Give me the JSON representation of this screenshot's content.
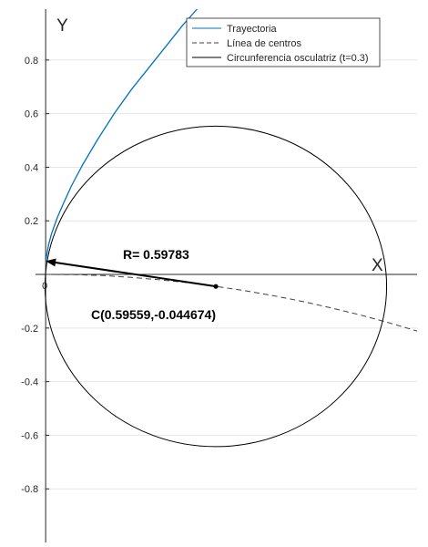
{
  "chart_data": {
    "type": "line",
    "title": "",
    "xlabel": "X",
    "ylabel": "Y",
    "origin_label": "0",
    "xlim": [
      -0.01,
      1.3
    ],
    "ylim": [
      -1.0,
      0.99
    ],
    "yticks": [
      -0.8,
      -0.6,
      -0.4,
      -0.2,
      0.2,
      0.4,
      0.6,
      0.8
    ],
    "ytick_labels": [
      "-0.8",
      "-0.6",
      "-0.4",
      "-0.2",
      "0.2",
      "0.4",
      "0.6",
      "0.8"
    ],
    "grid": true,
    "legend_position": "top-right",
    "parameter_t": 0.3,
    "series": [
      {
        "name": "Trayectoria",
        "style": "solid",
        "color": "#0072BD",
        "x": [
          0.0,
          0.01,
          0.02,
          0.04,
          0.06,
          0.09,
          0.13,
          0.18,
          0.24,
          0.3,
          0.36,
          0.42,
          0.48,
          0.53
        ],
        "y": [
          0.05,
          0.11,
          0.15,
          0.21,
          0.26,
          0.33,
          0.41,
          0.5,
          0.6,
          0.69,
          0.77,
          0.85,
          0.93,
          0.99
        ]
      },
      {
        "name": "Línea de centros",
        "style": "dashed",
        "color": "#404040",
        "x": [
          0.0,
          0.1,
          0.2,
          0.3,
          0.4,
          0.5,
          0.6,
          0.7,
          0.8,
          0.9,
          1.0,
          1.1,
          1.2,
          1.3
        ],
        "y": [
          0.0,
          -0.001,
          -0.004,
          -0.011,
          -0.02,
          -0.031,
          -0.045,
          -0.061,
          -0.08,
          -0.101,
          -0.125,
          -0.151,
          -0.18,
          -0.211
        ]
      },
      {
        "name": "Circunferencia osculatriz (t=0.3)",
        "style": "solid",
        "color": "#000000",
        "center": [
          0.59559,
          -0.044674
        ],
        "radius": 0.59783
      }
    ],
    "annotations": {
      "radius_label": "R= 0.59783",
      "center_label": "C(0.59559,-0.044674)",
      "point_on_curve": [
        0.0,
        0.05
      ]
    }
  }
}
